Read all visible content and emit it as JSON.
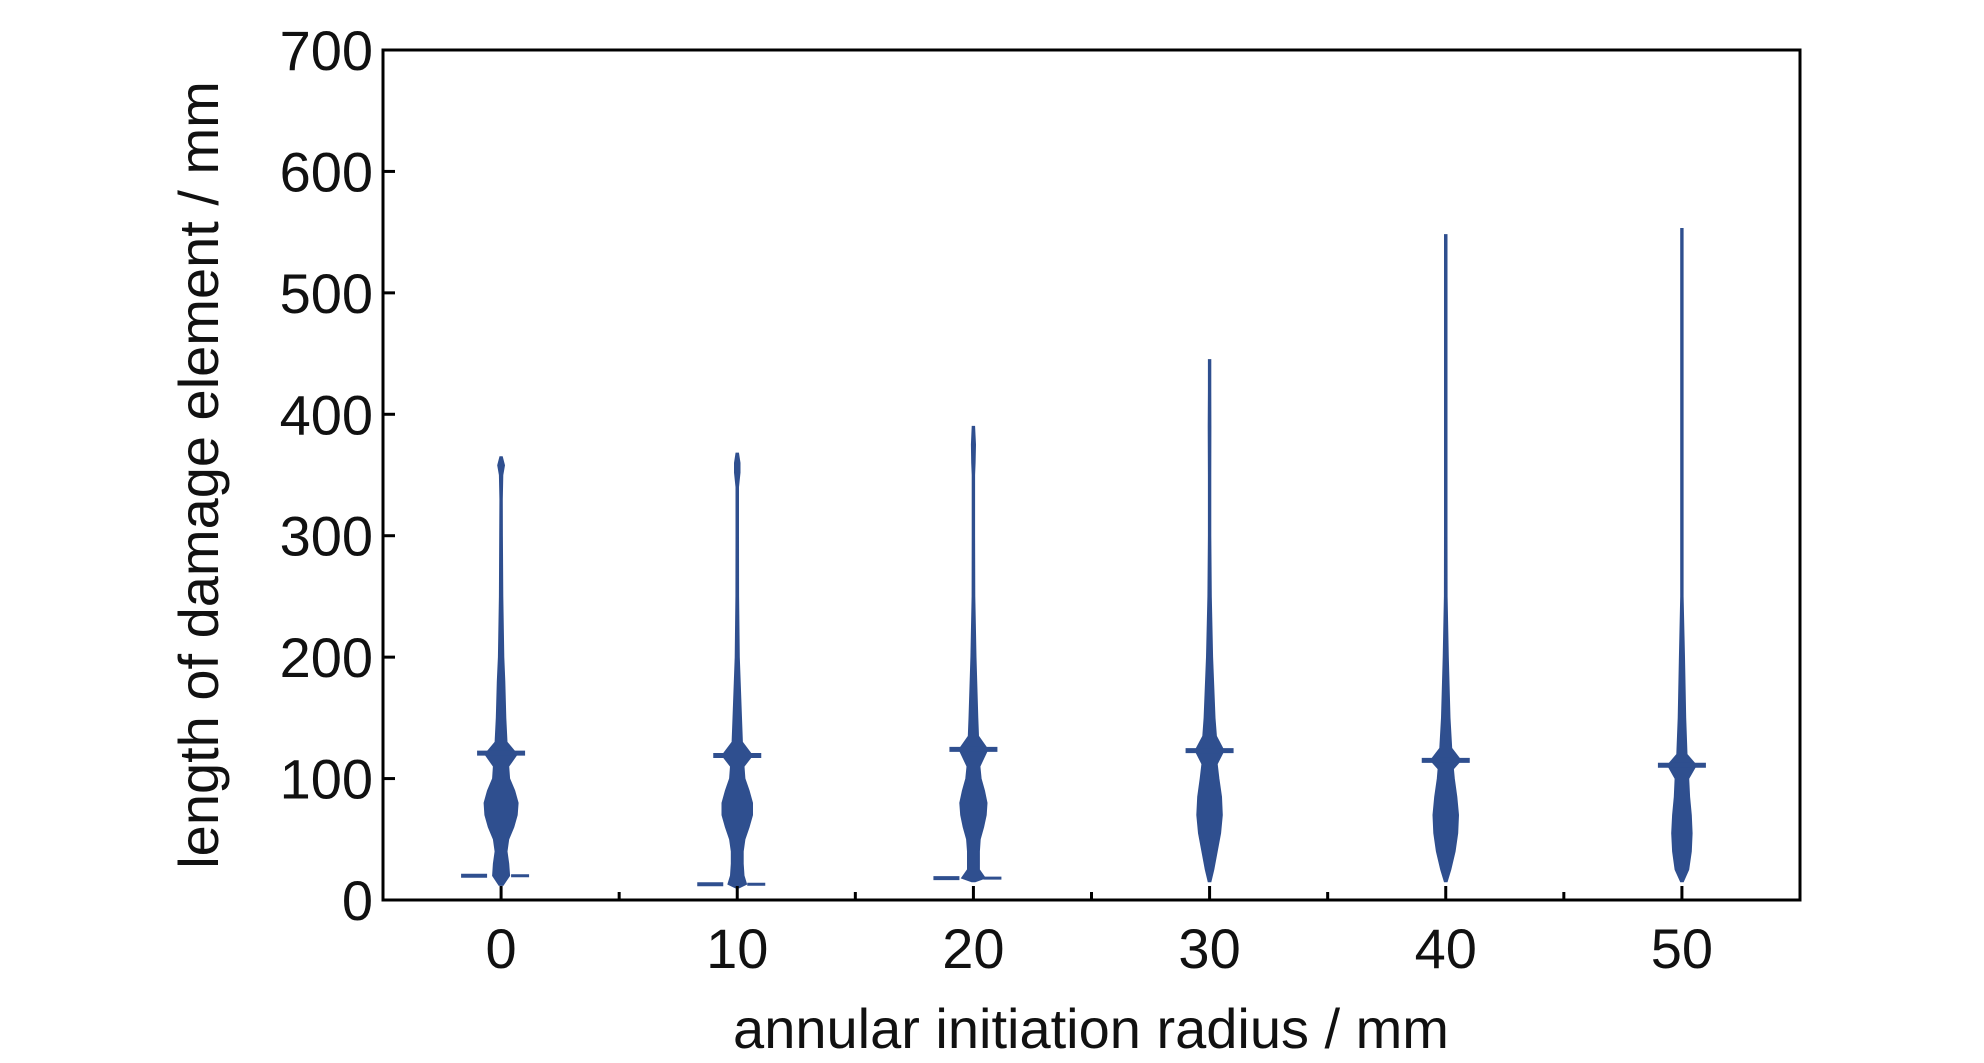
{
  "chart_data": {
    "type": "violin",
    "title": "",
    "xlabel": "annular initiation radius / mm",
    "ylabel": "length of damage element / mm",
    "xlim": [
      -5,
      55
    ],
    "ylim": [
      0,
      700
    ],
    "x_ticks": [
      0,
      10,
      20,
      30,
      40,
      50
    ],
    "y_ticks": [
      0,
      100,
      200,
      300,
      400,
      500,
      600,
      700
    ],
    "x_minor_ticks": [
      5,
      15,
      25,
      35,
      45
    ],
    "grid": false,
    "legend": "none",
    "series_color": "#2f4f8f",
    "violins": [
      {
        "x": 0,
        "min": 12,
        "max": 365,
        "marker_y": 121,
        "profile": [
          [
            12,
            0.12
          ],
          [
            20,
            0.5
          ],
          [
            30,
            0.45
          ],
          [
            40,
            0.35
          ],
          [
            50,
            0.45
          ],
          [
            60,
            0.75
          ],
          [
            70,
            0.95
          ],
          [
            80,
            1.0
          ],
          [
            90,
            0.8
          ],
          [
            100,
            0.5
          ],
          [
            110,
            0.45
          ],
          [
            120,
            0.95
          ],
          [
            130,
            0.35
          ],
          [
            150,
            0.28
          ],
          [
            180,
            0.22
          ],
          [
            200,
            0.16
          ],
          [
            250,
            0.1
          ],
          [
            300,
            0.08
          ],
          [
            330,
            0.06
          ],
          [
            350,
            0.1
          ],
          [
            358,
            0.2
          ],
          [
            365,
            0.05
          ]
        ]
      },
      {
        "x": 10,
        "min": 10,
        "max": 368,
        "marker_y": 119,
        "profile": [
          [
            10,
            0.1
          ],
          [
            13,
            0.55
          ],
          [
            20,
            0.4
          ],
          [
            30,
            0.35
          ],
          [
            40,
            0.35
          ],
          [
            50,
            0.45
          ],
          [
            60,
            0.7
          ],
          [
            70,
            0.9
          ],
          [
            80,
            0.9
          ],
          [
            90,
            0.7
          ],
          [
            100,
            0.45
          ],
          [
            110,
            0.4
          ],
          [
            119,
            0.9
          ],
          [
            130,
            0.3
          ],
          [
            150,
            0.25
          ],
          [
            200,
            0.12
          ],
          [
            250,
            0.08
          ],
          [
            300,
            0.06
          ],
          [
            340,
            0.06
          ],
          [
            352,
            0.16
          ],
          [
            360,
            0.16
          ],
          [
            368,
            0.04
          ]
        ]
      },
      {
        "x": 20,
        "min": 15,
        "max": 390,
        "marker_y": 124,
        "profile": [
          [
            15,
            0.1
          ],
          [
            18,
            0.7
          ],
          [
            25,
            0.35
          ],
          [
            40,
            0.35
          ],
          [
            50,
            0.4
          ],
          [
            60,
            0.6
          ],
          [
            70,
            0.75
          ],
          [
            80,
            0.8
          ],
          [
            90,
            0.65
          ],
          [
            100,
            0.45
          ],
          [
            110,
            0.38
          ],
          [
            124,
            0.85
          ],
          [
            135,
            0.3
          ],
          [
            150,
            0.26
          ],
          [
            200,
            0.15
          ],
          [
            250,
            0.08
          ],
          [
            300,
            0.06
          ],
          [
            350,
            0.06
          ],
          [
            360,
            0.1
          ],
          [
            375,
            0.12
          ],
          [
            390,
            0.02
          ]
        ]
      },
      {
        "x": 30,
        "min": 15,
        "max": 445,
        "marker_y": 123,
        "profile": [
          [
            15,
            0.08
          ],
          [
            25,
            0.25
          ],
          [
            40,
            0.45
          ],
          [
            55,
            0.65
          ],
          [
            70,
            0.75
          ],
          [
            85,
            0.7
          ],
          [
            100,
            0.55
          ],
          [
            112,
            0.45
          ],
          [
            123,
            0.85
          ],
          [
            135,
            0.4
          ],
          [
            150,
            0.32
          ],
          [
            200,
            0.18
          ],
          [
            250,
            0.1
          ],
          [
            300,
            0.07
          ],
          [
            350,
            0.05
          ],
          [
            390,
            0.08
          ],
          [
            420,
            0.04
          ],
          [
            445,
            0.02
          ]
        ]
      },
      {
        "x": 40,
        "min": 15,
        "max": 548,
        "marker_y": 115,
        "profile": [
          [
            15,
            0.08
          ],
          [
            25,
            0.3
          ],
          [
            40,
            0.55
          ],
          [
            55,
            0.7
          ],
          [
            70,
            0.75
          ],
          [
            85,
            0.65
          ],
          [
            100,
            0.5
          ],
          [
            108,
            0.45
          ],
          [
            115,
            0.9
          ],
          [
            125,
            0.35
          ],
          [
            150,
            0.25
          ],
          [
            200,
            0.15
          ],
          [
            250,
            0.08
          ],
          [
            300,
            0.05
          ],
          [
            350,
            0.04
          ],
          [
            400,
            0.03
          ],
          [
            450,
            0.02
          ],
          [
            500,
            0.015
          ],
          [
            548,
            0.01
          ]
        ]
      },
      {
        "x": 50,
        "min": 15,
        "max": 553,
        "marker_y": 111,
        "profile": [
          [
            15,
            0.08
          ],
          [
            25,
            0.4
          ],
          [
            40,
            0.55
          ],
          [
            55,
            0.6
          ],
          [
            70,
            0.55
          ],
          [
            85,
            0.45
          ],
          [
            100,
            0.4
          ],
          [
            111,
            0.85
          ],
          [
            120,
            0.3
          ],
          [
            150,
            0.22
          ],
          [
            200,
            0.15
          ],
          [
            250,
            0.06
          ],
          [
            300,
            0.04
          ],
          [
            350,
            0.03
          ],
          [
            400,
            0.02
          ],
          [
            450,
            0.015
          ],
          [
            500,
            0.01
          ],
          [
            553,
            0.008
          ]
        ]
      }
    ]
  }
}
